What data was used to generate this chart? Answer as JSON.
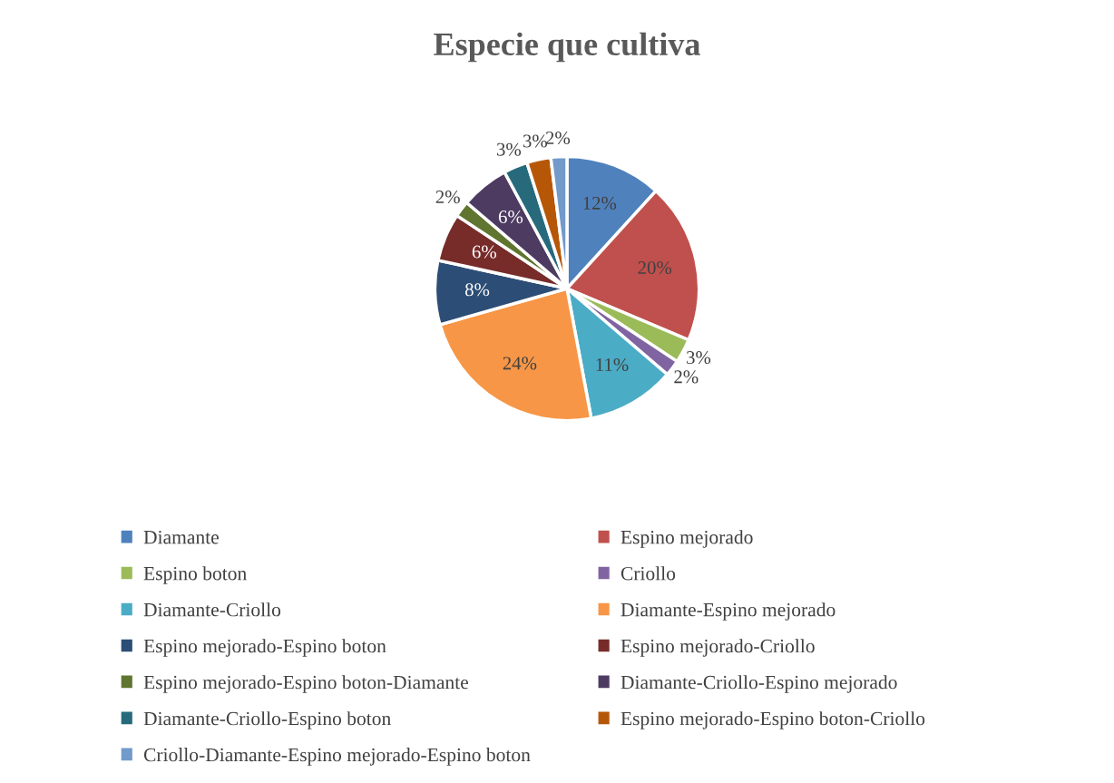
{
  "chart_data": {
    "type": "pie",
    "title": "Especie que cultiva",
    "categories": [
      "Diamante",
      "Espino mejorado",
      "Espino boton",
      "Criollo",
      "Diamante-Criollo",
      "Diamante-Espino mejorado",
      "Espino mejorado-Espino boton",
      "Espino mejorado-Criollo",
      "Espino mejorado-Espino boton-Diamante",
      "Diamante-Criollo-Espino mejorado",
      "Diamante-Criollo-Espino boton",
      "Espino mejorado-Espino boton-Criollo",
      "Criollo-Diamante-Espino mejorado-Espino boton"
    ],
    "values": [
      12,
      20,
      3,
      2,
      11,
      24,
      8,
      6,
      2,
      6,
      3,
      3,
      2
    ],
    "value_labels": [
      "12%",
      "20%",
      "3%",
      "2%",
      "11%",
      "24%",
      "8%",
      "6%",
      "2%",
      "6%",
      "3%",
      "3%",
      "2%"
    ],
    "colors": [
      "#4f81bd",
      "#c0504d",
      "#9bbb59",
      "#8064a2",
      "#4bacc6",
      "#f79646",
      "#2c4d75",
      "#772c2a",
      "#5f7530",
      "#4d3b62",
      "#276a7c",
      "#b65708",
      "#729aca"
    ],
    "legend": "bottom"
  }
}
